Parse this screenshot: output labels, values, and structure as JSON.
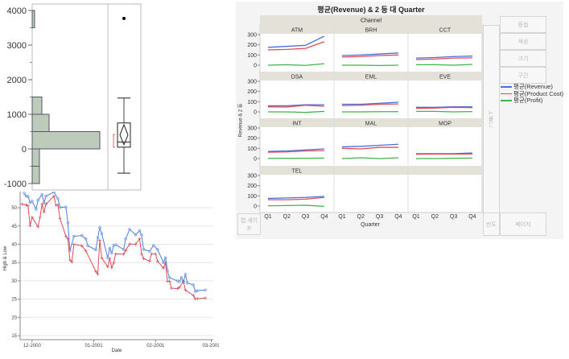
{
  "histogram_panel": {
    "chart_data": {
      "type": "histogram+boxplot",
      "yticks": [
        -1000,
        0,
        1000,
        2000,
        3000,
        4000
      ],
      "ylim": [
        -1100,
        4200
      ],
      "bins": [
        {
          "from": -1000,
          "to": -500,
          "count": 3
        },
        {
          "from": -500,
          "to": 0,
          "count": 3
        },
        {
          "from": 0,
          "to": 500,
          "count": 28
        },
        {
          "from": 500,
          "to": 1000,
          "count": 7
        },
        {
          "from": 1000,
          "to": 1500,
          "count": 4
        },
        {
          "from": 3500,
          "to": 4000,
          "count": 1
        }
      ],
      "box": {
        "whisker_low": -700,
        "q1": 50,
        "median": 200,
        "q3": 750,
        "whisker_high": 1470,
        "mean": 400,
        "mean_ci": [
          120,
          700
        ],
        "shortest_half": [
          50,
          420
        ],
        "outliers": [
          3770
        ]
      },
      "bar_color": "#bccbba"
    }
  },
  "stock_chart": {
    "chart_data": {
      "type": "line",
      "xlabel": "Date",
      "ylabel": "High & Low",
      "xlim": [
        "2000-11-25",
        "2001-03-02"
      ],
      "xticks": [
        {
          "date": "2000-12-01",
          "label": "12-2000"
        },
        {
          "date": "2001-01-01",
          "label": "01-2001"
        },
        {
          "date": "2001-02-01",
          "label": "02-2001"
        },
        {
          "date": "2001-03-01",
          "label": "03-2001"
        }
      ],
      "ylim": [
        13.9,
        57.3
      ],
      "yticks": [
        15,
        20,
        25,
        30,
        35,
        40,
        45,
        50
      ],
      "grid": true,
      "series": [
        {
          "color": "#4a7fe0",
          "marker": "circle",
          "points": [
            [
              "2000-11-27",
              54.0
            ],
            [
              "2000-11-28",
              53.2
            ],
            [
              "2000-11-29",
              53.1
            ],
            [
              "2000-11-30",
              51.4
            ],
            [
              "2000-12-01",
              51.8
            ],
            [
              "2000-12-03",
              49.6
            ],
            [
              "2000-12-04",
              52.1
            ],
            [
              "2000-12-06",
              53.6
            ],
            [
              "2000-12-07",
              51.4
            ],
            [
              "2000-12-08",
              53.2
            ],
            [
              "2000-12-12",
              54.3
            ],
            [
              "2000-12-14",
              52.5
            ],
            [
              "2000-12-15",
              50.1
            ],
            [
              "2000-12-18",
              50.2
            ],
            [
              "2000-12-19",
              45.9
            ],
            [
              "2000-12-20",
              38.2
            ],
            [
              "2000-12-22",
              42.2
            ],
            [
              "2000-12-26",
              42.4
            ],
            [
              "2000-12-28",
              41.5
            ],
            [
              "2000-12-29",
              39.6
            ],
            [
              "2001-01-02",
              38.5
            ],
            [
              "2001-01-03",
              41.8
            ],
            [
              "2001-01-04",
              44.6
            ],
            [
              "2001-01-05",
              42.9
            ],
            [
              "2001-01-08",
              36.3
            ],
            [
              "2001-01-09",
              38.9
            ],
            [
              "2001-01-10",
              37.6
            ],
            [
              "2001-01-11",
              39.7
            ],
            [
              "2001-01-12",
              39.9
            ],
            [
              "2001-01-16",
              38.6
            ],
            [
              "2001-01-17",
              41.5
            ],
            [
              "2001-01-19",
              44.1
            ],
            [
              "2001-01-22",
              42.6
            ],
            [
              "2001-01-24",
              43.7
            ],
            [
              "2001-01-25",
              42.6
            ],
            [
              "2001-01-26",
              38.6
            ],
            [
              "2001-01-29",
              38.1
            ],
            [
              "2001-01-31",
              39.7
            ],
            [
              "2001-02-02",
              38.6
            ],
            [
              "2001-02-05",
              35.0
            ],
            [
              "2001-02-06",
              36.3
            ],
            [
              "2001-02-07",
              32.8
            ],
            [
              "2001-02-08",
              30.9
            ],
            [
              "2001-02-12",
              30.0
            ],
            [
              "2001-02-13",
              29.8
            ],
            [
              "2001-02-14",
              30.9
            ],
            [
              "2001-02-15",
              29.6
            ],
            [
              "2001-02-16",
              31.8
            ],
            [
              "2001-02-17",
              29.4
            ],
            [
              "2001-02-20",
              28.9
            ],
            [
              "2001-02-21",
              27.1
            ],
            [
              "2001-02-22",
              27.3
            ],
            [
              "2001-02-26",
              27.5
            ]
          ]
        },
        {
          "color": "#e04a57",
          "marker": "plus",
          "points": [
            [
              "2000-11-26",
              51.0
            ],
            [
              "2000-11-28",
              50.8
            ],
            [
              "2000-11-29",
              50.5
            ],
            [
              "2000-11-30",
              45.1
            ],
            [
              "2000-12-01",
              47.4
            ],
            [
              "2000-12-04",
              44.8
            ],
            [
              "2000-12-05",
              47.4
            ],
            [
              "2000-12-06",
              51.0
            ],
            [
              "2000-12-07",
              48.8
            ],
            [
              "2000-12-08",
              51.0
            ],
            [
              "2000-12-12",
              53.2
            ],
            [
              "2000-12-13",
              50.7
            ],
            [
              "2000-12-14",
              50.8
            ],
            [
              "2000-12-15",
              47.1
            ],
            [
              "2000-12-18",
              42.2
            ],
            [
              "2000-12-19",
              41.5
            ],
            [
              "2000-12-20",
              35.7
            ],
            [
              "2000-12-21",
              35.2
            ],
            [
              "2000-12-22",
              40.0
            ],
            [
              "2000-12-26",
              39.6
            ],
            [
              "2000-12-28",
              38.2
            ],
            [
              "2001-01-02",
              32.6
            ],
            [
              "2001-01-03",
              31.9
            ],
            [
              "2001-01-04",
              41.1
            ],
            [
              "2001-01-05",
              36.3
            ],
            [
              "2001-01-08",
              33.8
            ],
            [
              "2001-01-09",
              36.1
            ],
            [
              "2001-01-10",
              33.6
            ],
            [
              "2001-01-11",
              34.9
            ],
            [
              "2001-01-12",
              37.4
            ],
            [
              "2001-01-16",
              37.3
            ],
            [
              "2001-01-17",
              38.3
            ],
            [
              "2001-01-19",
              40.1
            ],
            [
              "2001-01-22",
              40.0
            ],
            [
              "2001-01-24",
              41.5
            ],
            [
              "2001-01-25",
              37.4
            ],
            [
              "2001-01-26",
              36.1
            ],
            [
              "2001-01-29",
              35.4
            ],
            [
              "2001-01-30",
              37.4
            ],
            [
              "2001-02-01",
              37.4
            ],
            [
              "2001-02-02",
              35.4
            ],
            [
              "2001-02-05",
              33.5
            ],
            [
              "2001-02-06",
              34.9
            ],
            [
              "2001-02-07",
              29.9
            ],
            [
              "2001-02-08",
              29.9
            ],
            [
              "2001-02-09",
              28.0
            ],
            [
              "2001-02-12",
              27.9
            ],
            [
              "2001-02-13",
              28.2
            ],
            [
              "2001-02-15",
              29.9
            ],
            [
              "2001-02-16",
              27.5
            ],
            [
              "2001-02-20",
              26.0
            ],
            [
              "2001-02-21",
              25.1
            ],
            [
              "2001-02-22",
              25.1
            ],
            [
              "2001-02-26",
              25.3
            ]
          ]
        }
      ]
    }
  },
  "graph_builder": {
    "title": "평균(Revenue) & 2 등 대 Quarter",
    "group_x_label": "Channel",
    "ylabel": "Revenue & 2 등",
    "xlabel": "Quarter",
    "zones": {
      "overlay": "중첩",
      "color": "색상",
      "size": "크기",
      "interval": "구간",
      "group_y": "그룹 Y",
      "freq": "빈도",
      "page": "페이지",
      "map_shape": "맵 셰이프"
    },
    "legend": [
      {
        "label": "평균(Revenue)",
        "color": "#4a6fe0"
      },
      {
        "label": "평균(Product Cost)",
        "color": "#e04a57"
      },
      {
        "label": "평균(Profit)",
        "color": "#3fb44a"
      }
    ],
    "chart_data": {
      "type": "line",
      "categories": [
        "Q1",
        "Q2",
        "Q3",
        "Q4"
      ],
      "yticks": [
        0,
        100,
        200,
        300
      ],
      "ylim": [
        -50,
        310
      ],
      "facets": [
        {
          "name": "ATM",
          "series": [
            [
              175,
              185,
              195,
              285
            ],
            [
              150,
              155,
              165,
              230
            ],
            [
              0,
              5,
              -2,
              15
            ]
          ]
        },
        {
          "name": "BRH",
          "series": [
            [
              95,
              100,
              110,
              120
            ],
            [
              80,
              85,
              95,
              100
            ],
            [
              0,
              0,
              -3,
              0
            ]
          ]
        },
        {
          "name": "CCT",
          "series": [
            [
              70,
              75,
              85,
              90
            ],
            [
              55,
              60,
              70,
              72
            ],
            [
              5,
              5,
              0,
              8
            ]
          ]
        },
        {
          "name": "DSA",
          "series": [
            [
              60,
              60,
              70,
              70
            ],
            [
              50,
              48,
              65,
              55
            ],
            [
              0,
              0,
              -5,
              5
            ]
          ]
        },
        {
          "name": "EML",
          "series": [
            [
              75,
              75,
              85,
              95
            ],
            [
              62,
              65,
              75,
              78
            ],
            [
              0,
              0,
              2,
              2
            ]
          ]
        },
        {
          "name": "EVE",
          "series": [
            [
              45,
              45,
              50,
              50
            ],
            [
              35,
              38,
              45,
              42
            ],
            [
              5,
              5,
              0,
              3
            ]
          ]
        },
        {
          "name": "INT",
          "series": [
            [
              70,
              75,
              85,
              95
            ],
            [
              62,
              65,
              75,
              78
            ],
            [
              2,
              3,
              3,
              5
            ]
          ]
        },
        {
          "name": "MAL",
          "series": [
            [
              115,
              120,
              130,
              140
            ],
            [
              100,
              95,
              110,
              110
            ],
            [
              0,
              8,
              0,
              8
            ]
          ]
        },
        {
          "name": "MOP",
          "series": [
            [
              48,
              48,
              48,
              55
            ],
            [
              43,
              45,
              45,
              45
            ],
            [
              0,
              0,
              3,
              5
            ]
          ]
        },
        {
          "name": "TEL",
          "series": [
            [
              75,
              80,
              85,
              95
            ],
            [
              62,
              62,
              68,
              85
            ],
            [
              3,
              5,
              8,
              -3
            ]
          ]
        }
      ]
    }
  }
}
